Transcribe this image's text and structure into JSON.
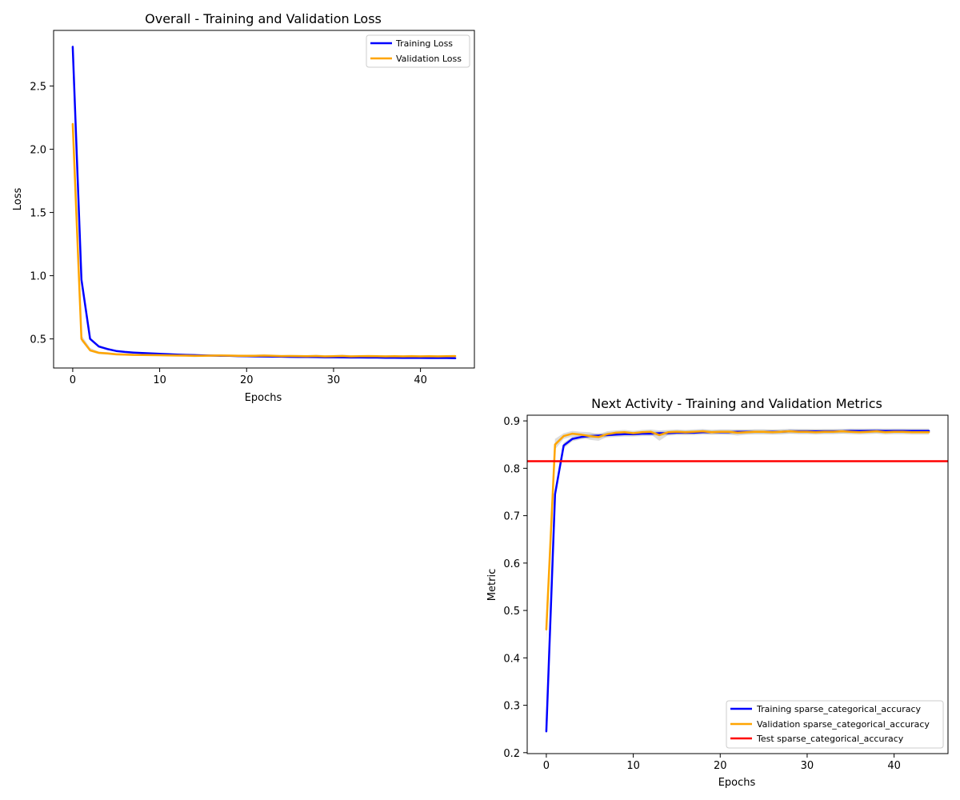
{
  "colors": {
    "training": "#0000ff",
    "validation": "#ffa500",
    "test": "#ff0000",
    "band": "#c0c0c0"
  },
  "chart_data": [
    {
      "type": "line",
      "title": "Overall - Training and Validation Loss",
      "xlabel": "Epochs",
      "ylabel": "Loss",
      "xlim": [
        -2.2,
        46.2
      ],
      "ylim": [
        0.27,
        2.94
      ],
      "xticks": [
        0,
        10,
        20,
        30,
        40
      ],
      "yticks": [
        0.5,
        1.0,
        1.5,
        2.0,
        2.5
      ],
      "ytick_labels": [
        "0.5",
        "1.0",
        "1.5",
        "2.0",
        "2.5"
      ],
      "legend_position": "upper right",
      "grid": false,
      "x": [
        0,
        1,
        2,
        3,
        4,
        5,
        6,
        7,
        8,
        9,
        10,
        11,
        12,
        13,
        14,
        15,
        16,
        17,
        18,
        19,
        20,
        21,
        22,
        23,
        24,
        25,
        26,
        27,
        28,
        29,
        30,
        31,
        32,
        33,
        34,
        35,
        36,
        37,
        38,
        39,
        40,
        41,
        42,
        43,
        44
      ],
      "series": [
        {
          "name": "Training Loss",
          "color": "#0000ff",
          "values": [
            2.81,
            0.97,
            0.5,
            0.44,
            0.42,
            0.405,
            0.397,
            0.392,
            0.388,
            0.385,
            0.382,
            0.379,
            0.376,
            0.374,
            0.372,
            0.37,
            0.368,
            0.367,
            0.366,
            0.364,
            0.363,
            0.362,
            0.361,
            0.36,
            0.359,
            0.358,
            0.357,
            0.357,
            0.356,
            0.355,
            0.355,
            0.354,
            0.353,
            0.353,
            0.352,
            0.352,
            0.351,
            0.351,
            0.35,
            0.35,
            0.35,
            0.349,
            0.349,
            0.349,
            0.348
          ],
          "band_low": [
            2.77,
            0.94,
            0.49,
            0.43,
            0.41,
            0.398,
            0.391,
            0.386,
            0.383,
            0.38,
            0.377,
            0.374,
            0.371,
            0.369,
            0.367,
            0.365,
            0.363,
            0.362,
            0.361,
            0.359,
            0.358,
            0.357,
            0.356,
            0.355,
            0.354,
            0.353,
            0.352,
            0.352,
            0.351,
            0.35,
            0.35,
            0.349,
            0.348,
            0.348,
            0.347,
            0.347,
            0.346,
            0.346,
            0.345,
            0.345,
            0.345,
            0.344,
            0.344,
            0.344,
            0.343
          ],
          "band_high": [
            2.87,
            1.0,
            0.51,
            0.45,
            0.43,
            0.412,
            0.403,
            0.398,
            0.393,
            0.39,
            0.387,
            0.384,
            0.381,
            0.379,
            0.377,
            0.375,
            0.373,
            0.372,
            0.371,
            0.369,
            0.368,
            0.367,
            0.366,
            0.365,
            0.364,
            0.363,
            0.362,
            0.362,
            0.361,
            0.36,
            0.36,
            0.359,
            0.358,
            0.358,
            0.357,
            0.357,
            0.356,
            0.356,
            0.355,
            0.355,
            0.355,
            0.354,
            0.354,
            0.354,
            0.353
          ]
        },
        {
          "name": "Validation Loss",
          "color": "#ffa500",
          "values": [
            2.2,
            0.5,
            0.41,
            0.39,
            0.385,
            0.378,
            0.376,
            0.374,
            0.373,
            0.372,
            0.371,
            0.37,
            0.369,
            0.368,
            0.366,
            0.367,
            0.368,
            0.369,
            0.368,
            0.367,
            0.366,
            0.367,
            0.368,
            0.366,
            0.364,
            0.365,
            0.364,
            0.363,
            0.365,
            0.362,
            0.363,
            0.365,
            0.362,
            0.363,
            0.364,
            0.363,
            0.362,
            0.363,
            0.362,
            0.363,
            0.362,
            0.363,
            0.362,
            0.363,
            0.364
          ],
          "band_low": [
            2.15,
            0.48,
            0.4,
            0.38,
            0.375,
            0.37,
            0.368,
            0.366,
            0.365,
            0.364,
            0.363,
            0.362,
            0.361,
            0.36,
            0.356,
            0.359,
            0.36,
            0.361,
            0.36,
            0.359,
            0.358,
            0.359,
            0.36,
            0.357,
            0.356,
            0.357,
            0.356,
            0.355,
            0.357,
            0.354,
            0.355,
            0.356,
            0.354,
            0.355,
            0.356,
            0.355,
            0.354,
            0.355,
            0.354,
            0.355,
            0.354,
            0.355,
            0.354,
            0.355,
            0.356
          ],
          "band_high": [
            2.3,
            0.53,
            0.43,
            0.4,
            0.395,
            0.387,
            0.385,
            0.383,
            0.382,
            0.381,
            0.38,
            0.379,
            0.378,
            0.377,
            0.375,
            0.376,
            0.377,
            0.378,
            0.377,
            0.376,
            0.375,
            0.376,
            0.378,
            0.375,
            0.373,
            0.374,
            0.373,
            0.372,
            0.375,
            0.371,
            0.372,
            0.376,
            0.371,
            0.372,
            0.373,
            0.372,
            0.371,
            0.372,
            0.371,
            0.373,
            0.371,
            0.372,
            0.371,
            0.372,
            0.373
          ]
        }
      ]
    },
    {
      "type": "line",
      "title": "Next Activity - Training and Validation Metrics",
      "xlabel": "Epochs",
      "ylabel": "Metric",
      "xlim": [
        -2.2,
        46.2
      ],
      "ylim": [
        0.198,
        0.912
      ],
      "xticks": [
        0,
        10,
        20,
        30,
        40
      ],
      "yticks": [
        0.2,
        0.3,
        0.4,
        0.5,
        0.6,
        0.7,
        0.8,
        0.9
      ],
      "ytick_labels": [
        "0.2",
        "0.3",
        "0.4",
        "0.5",
        "0.6",
        "0.7",
        "0.8",
        "0.9"
      ],
      "legend_position": "lower right",
      "grid": false,
      "x": [
        0,
        1,
        2,
        3,
        4,
        5,
        6,
        7,
        8,
        9,
        10,
        11,
        12,
        13,
        14,
        15,
        16,
        17,
        18,
        19,
        20,
        21,
        22,
        23,
        24,
        25,
        26,
        27,
        28,
        29,
        30,
        31,
        32,
        33,
        34,
        35,
        36,
        37,
        38,
        39,
        40,
        41,
        42,
        43,
        44
      ],
      "series": [
        {
          "name": "Training sparse_categorical_accuracy",
          "color": "#0000ff",
          "values": [
            0.245,
            0.745,
            0.848,
            0.862,
            0.866,
            0.868,
            0.869,
            0.87,
            0.871,
            0.872,
            0.872,
            0.873,
            0.873,
            0.874,
            0.874,
            0.875,
            0.875,
            0.875,
            0.876,
            0.876,
            0.876,
            0.876,
            0.877,
            0.877,
            0.877,
            0.877,
            0.877,
            0.877,
            0.878,
            0.878,
            0.878,
            0.878,
            0.878,
            0.878,
            0.878,
            0.879,
            0.879,
            0.879,
            0.879,
            0.879,
            0.879,
            0.879,
            0.879,
            0.879,
            0.879
          ],
          "band_low": [
            0.235,
            0.735,
            0.842,
            0.857,
            0.861,
            0.863,
            0.864,
            0.865,
            0.866,
            0.867,
            0.867,
            0.868,
            0.868,
            0.869,
            0.869,
            0.87,
            0.87,
            0.87,
            0.871,
            0.871,
            0.871,
            0.871,
            0.872,
            0.872,
            0.872,
            0.872,
            0.872,
            0.872,
            0.873,
            0.873,
            0.873,
            0.873,
            0.873,
            0.873,
            0.873,
            0.874,
            0.874,
            0.874,
            0.874,
            0.874,
            0.874,
            0.874,
            0.874,
            0.874,
            0.874
          ],
          "band_high": [
            0.255,
            0.755,
            0.854,
            0.867,
            0.871,
            0.873,
            0.874,
            0.875,
            0.876,
            0.877,
            0.877,
            0.878,
            0.878,
            0.879,
            0.879,
            0.88,
            0.88,
            0.88,
            0.881,
            0.881,
            0.881,
            0.881,
            0.882,
            0.882,
            0.882,
            0.882,
            0.882,
            0.882,
            0.883,
            0.883,
            0.883,
            0.883,
            0.883,
            0.883,
            0.883,
            0.884,
            0.884,
            0.884,
            0.884,
            0.884,
            0.884,
            0.884,
            0.884,
            0.884,
            0.884
          ]
        },
        {
          "name": "Validation sparse_categorical_accuracy",
          "color": "#ffa500",
          "values": [
            0.46,
            0.85,
            0.868,
            0.873,
            0.871,
            0.868,
            0.866,
            0.872,
            0.875,
            0.876,
            0.874,
            0.876,
            0.877,
            0.87,
            0.876,
            0.877,
            0.876,
            0.877,
            0.878,
            0.876,
            0.877,
            0.877,
            0.875,
            0.876,
            0.877,
            0.877,
            0.876,
            0.877,
            0.878,
            0.877,
            0.877,
            0.876,
            0.877,
            0.877,
            0.878,
            0.877,
            0.876,
            0.877,
            0.878,
            0.876,
            0.877,
            0.877,
            0.876,
            0.876,
            0.876
          ],
          "band_low": [
            0.43,
            0.84,
            0.862,
            0.867,
            0.866,
            0.86,
            0.858,
            0.866,
            0.87,
            0.871,
            0.869,
            0.871,
            0.872,
            0.858,
            0.87,
            0.872,
            0.871,
            0.872,
            0.873,
            0.871,
            0.872,
            0.871,
            0.869,
            0.871,
            0.872,
            0.872,
            0.871,
            0.872,
            0.873,
            0.872,
            0.872,
            0.871,
            0.872,
            0.872,
            0.873,
            0.872,
            0.871,
            0.872,
            0.873,
            0.871,
            0.872,
            0.872,
            0.871,
            0.871,
            0.871
          ],
          "band_high": [
            0.5,
            0.862,
            0.874,
            0.879,
            0.877,
            0.876,
            0.872,
            0.878,
            0.88,
            0.881,
            0.879,
            0.881,
            0.882,
            0.88,
            0.881,
            0.882,
            0.881,
            0.882,
            0.883,
            0.881,
            0.882,
            0.882,
            0.881,
            0.881,
            0.882,
            0.882,
            0.881,
            0.882,
            0.883,
            0.882,
            0.882,
            0.881,
            0.882,
            0.882,
            0.883,
            0.882,
            0.881,
            0.882,
            0.883,
            0.881,
            0.882,
            0.882,
            0.881,
            0.881,
            0.881
          ]
        }
      ],
      "hlines": [
        {
          "name": "Test sparse_categorical_accuracy",
          "color": "#ff0000",
          "value": 0.815
        }
      ]
    }
  ]
}
